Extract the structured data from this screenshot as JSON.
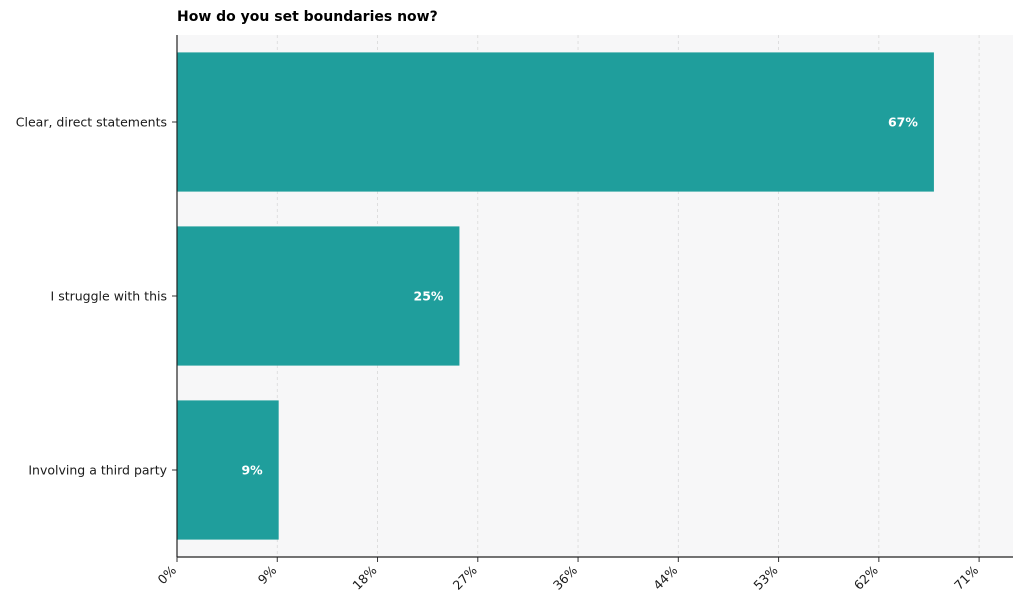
{
  "chart_data": {
    "type": "bar",
    "orientation": "horizontal",
    "title": "How do you set boundaries now?",
    "categories": [
      "Clear, direct statements",
      "I struggle with this",
      "Involving a third party"
    ],
    "values": [
      67,
      25,
      9
    ],
    "value_labels": [
      "67%",
      "25%",
      "9%"
    ],
    "xlabel": "",
    "ylabel": "",
    "xlim": [
      0,
      74
    ],
    "x_ticks": [
      0,
      8.875,
      17.75,
      26.625,
      35.5,
      44.375,
      53.25,
      62.125,
      71
    ],
    "x_tick_labels": [
      "0%",
      "9%",
      "18%",
      "27%",
      "36%",
      "44%",
      "53%",
      "62%",
      "71%"
    ],
    "grid": "vertical dashed",
    "legend": "none",
    "colors": {
      "bar": "#1f9e9c",
      "plot_background": "#f7f7f8",
      "value_text": "#ffffff"
    }
  }
}
